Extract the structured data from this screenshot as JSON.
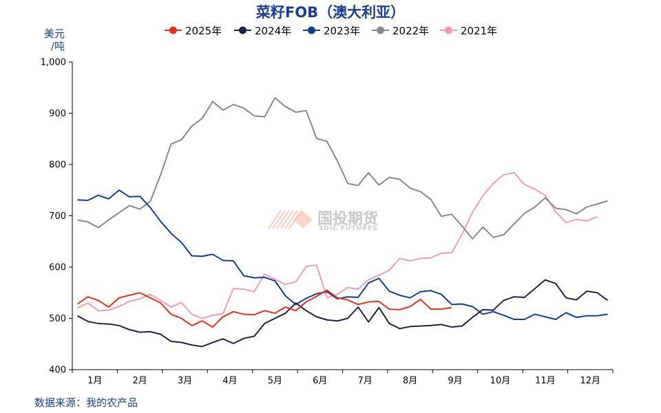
{
  "chart_data": {
    "type": "line",
    "title": "菜籽FOB（澳大利亚）",
    "ylabel": "美元/吨",
    "ylabel_lines": [
      "美元",
      "/吨"
    ],
    "ylim": [
      400,
      1000
    ],
    "yticks": [
      400,
      500,
      600,
      700,
      800,
      900,
      1000
    ],
    "ytick_labels": [
      "400",
      "500",
      "600",
      "700",
      "800",
      "900",
      "1,000"
    ],
    "xlim": [
      0,
      52
    ],
    "months": [
      "1月",
      "2月",
      "3月",
      "4月",
      "5月",
      "6月",
      "7月",
      "8月",
      "9月",
      "10月",
      "11月",
      "12月"
    ],
    "legend_position": "top-center",
    "series": [
      {
        "name": "2025年",
        "color": "#e8301f",
        "values": [
          528,
          542,
          535,
          522,
          540,
          545,
          550,
          540,
          530,
          508,
          500,
          486,
          495,
          483,
          503,
          513,
          508,
          507,
          515,
          510,
          522,
          515,
          532,
          543,
          555,
          540,
          536,
          527,
          532,
          533,
          518,
          517,
          523,
          537,
          518,
          518,
          521
        ]
      },
      {
        "name": "2024年",
        "color": "#1e2342",
        "values": [
          505,
          494,
          490,
          489,
          486,
          478,
          473,
          474,
          469,
          455,
          453,
          448,
          445,
          453,
          460,
          451,
          461,
          465,
          490,
          500,
          510,
          530,
          515,
          503,
          497,
          495,
          500,
          522,
          493,
          521,
          490,
          480,
          484,
          485,
          486,
          488,
          483,
          485,
          502,
          517,
          516,
          535,
          542,
          541,
          558,
          575,
          568,
          540,
          536,
          553,
          550,
          535
        ]
      },
      {
        "name": "2023年",
        "color": "#103f92",
        "values": [
          731,
          730,
          740,
          733,
          750,
          737,
          738,
          716,
          689,
          666,
          648,
          622,
          621,
          625,
          613,
          612,
          583,
          579,
          580,
          573,
          544,
          527,
          539,
          548,
          552,
          538,
          542,
          541,
          569,
          578,
          553,
          545,
          540,
          552,
          554,
          547,
          527,
          528,
          523,
          508,
          513,
          506,
          498,
          498,
          508,
          503,
          498,
          511,
          502,
          505,
          505,
          508
        ]
      },
      {
        "name": "2022年",
        "color": "#888888",
        "values": [
          692,
          688,
          677,
          692,
          706,
          720,
          713,
          728,
          780,
          840,
          848,
          875,
          890,
          923,
          906,
          917,
          910,
          895,
          893,
          930,
          913,
          902,
          905,
          851,
          845,
          807,
          763,
          759,
          784,
          760,
          775,
          771,
          754,
          747,
          732,
          699,
          703,
          680,
          655,
          678,
          658,
          663,
          684,
          705,
          717,
          735,
          715,
          712,
          704,
          717,
          723,
          729
        ]
      },
      {
        "name": "2021年",
        "color": "#f49bb3",
        "values": [
          520,
          530,
          515,
          516,
          523,
          533,
          538,
          547,
          535,
          522,
          531,
          508,
          500,
          506,
          509,
          558,
          557,
          552,
          586,
          576,
          566,
          571,
          601,
          604,
          540,
          547,
          560,
          557,
          575,
          584,
          594,
          617,
          612,
          617,
          618,
          627,
          628,
          664,
          707,
          739,
          763,
          780,
          784,
          761,
          752,
          740,
          708,
          687,
          693,
          690,
          698
        ]
      }
    ]
  },
  "source_note": "数据来源：我的农产品",
  "watermark": {
    "name": "国投期货",
    "sub": "SDIC FUTURES",
    "color": "#f0a48c"
  }
}
